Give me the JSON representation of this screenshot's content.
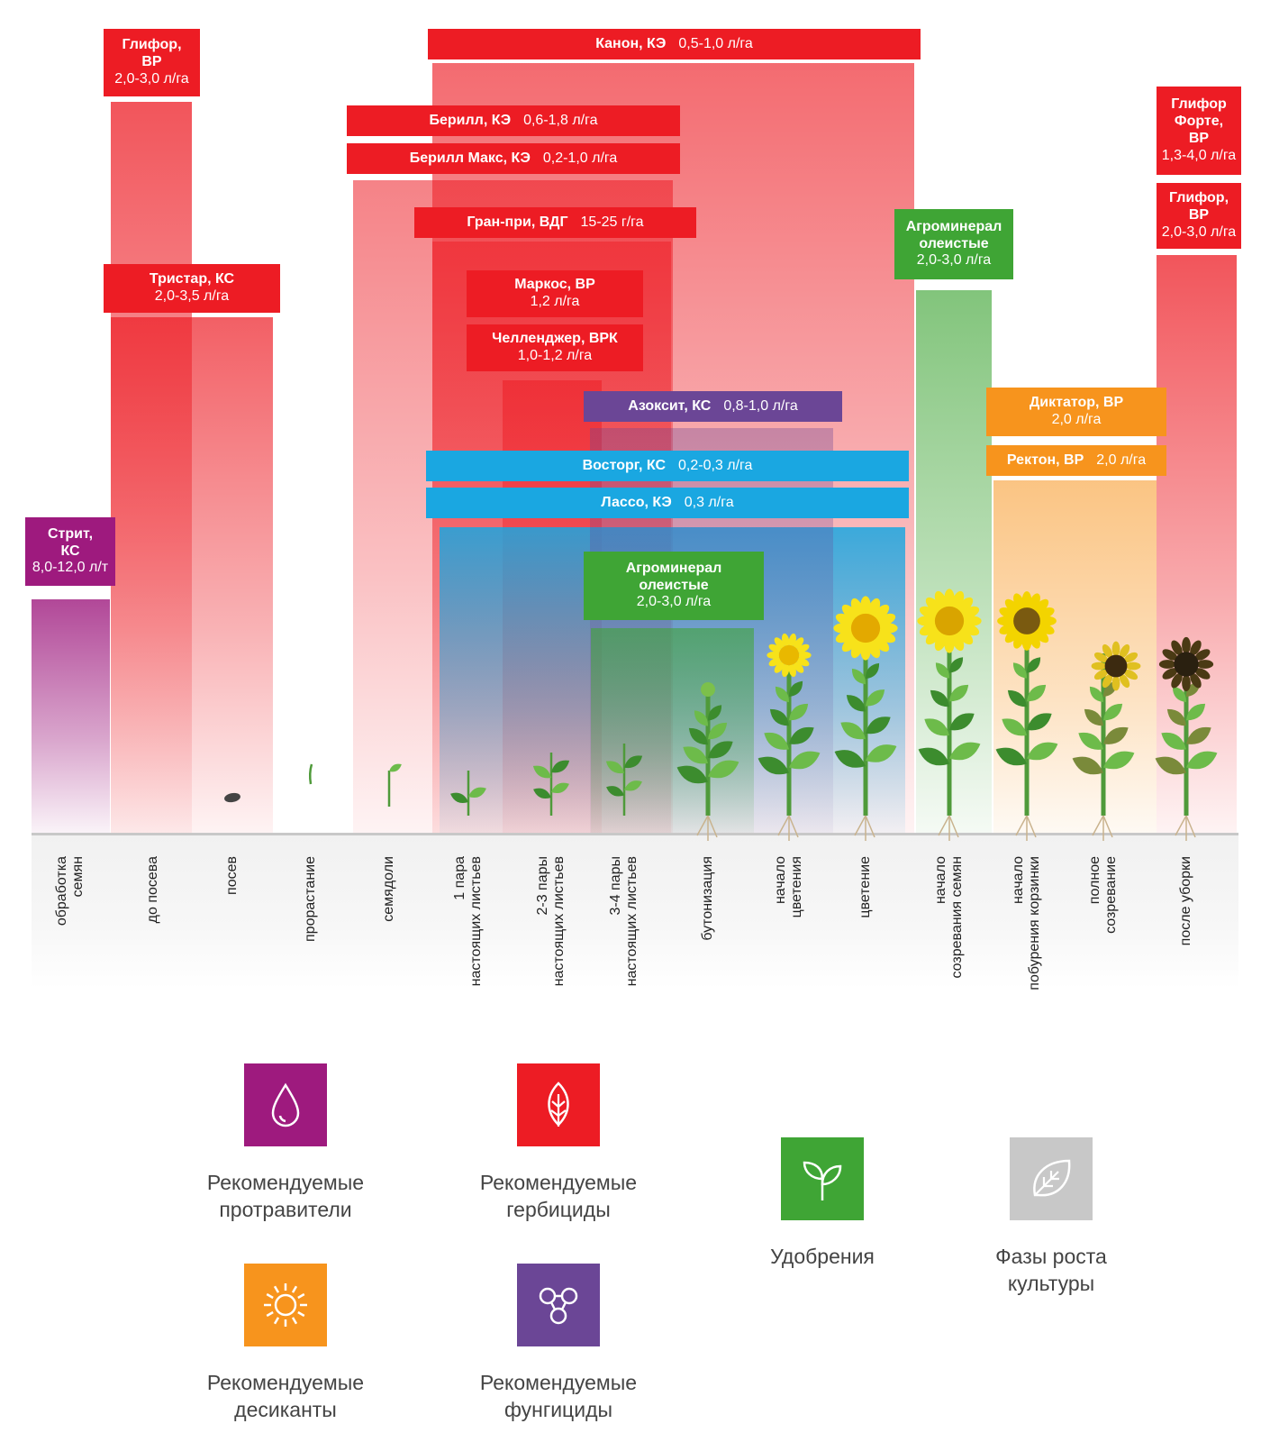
{
  "colors": {
    "herbicide": "#ed1c24",
    "fungicide": "#6b4696",
    "seed_treatment": "#9e1a7e",
    "fertilizer": "#3fa535",
    "desiccant": "#f7941d",
    "insecticide": "#1aa7e1",
    "growth_stage": "#c8c8c8"
  },
  "stages": [
    {
      "id": "s1",
      "lines": [
        "обработка",
        "семян"
      ]
    },
    {
      "id": "s2",
      "lines": [
        "до посева"
      ]
    },
    {
      "id": "s3",
      "lines": [
        "посев"
      ]
    },
    {
      "id": "s4",
      "lines": [
        "прорастание"
      ]
    },
    {
      "id": "s5",
      "lines": [
        "семядоли"
      ]
    },
    {
      "id": "s6",
      "lines": [
        "1 пара",
        "настоящих листьев"
      ]
    },
    {
      "id": "s7",
      "lines": [
        "2-3 пары",
        "настоящих листьев"
      ]
    },
    {
      "id": "s8",
      "lines": [
        "3-4 пары",
        "настоящих листьев"
      ]
    },
    {
      "id": "s9",
      "lines": [
        "бутонизация"
      ]
    },
    {
      "id": "s10",
      "lines": [
        "начало",
        "цветения"
      ]
    },
    {
      "id": "s11",
      "lines": [
        "цветение"
      ]
    },
    {
      "id": "s12",
      "lines": [
        "начало",
        "созревания семян"
      ]
    },
    {
      "id": "s13",
      "lines": [
        "начало",
        "побурения корзинки"
      ]
    },
    {
      "id": "s14",
      "lines": [
        "полное",
        "созревание"
      ]
    },
    {
      "id": "s15",
      "lines": [
        "после уборки"
      ]
    }
  ],
  "products": [
    {
      "id": "strit",
      "kind": "seed_treatment",
      "lines": [
        {
          "name": "Стрит,"
        },
        {
          "name": "КС"
        },
        {
          "dose": "8,0-12,0 л/т"
        }
      ]
    },
    {
      "id": "glifor1",
      "kind": "herbicide",
      "lines": [
        {
          "name": "Глифор,"
        },
        {
          "name": "ВР"
        },
        {
          "dose": "2,0-3,0 л/га"
        }
      ]
    },
    {
      "id": "tristar",
      "kind": "herbicide",
      "lines": [
        {
          "name": "Тристар, КС"
        },
        {
          "dose": "2,0-3,5 л/га"
        }
      ]
    },
    {
      "id": "kanon",
      "kind": "herbicide",
      "lines": [
        {
          "name": "Канон, КЭ",
          "dose": "0,5-1,0 л/га"
        }
      ]
    },
    {
      "id": "berill",
      "kind": "herbicide",
      "lines": [
        {
          "name": "Берилл, КЭ",
          "dose": "0,6-1,8 л/га"
        }
      ]
    },
    {
      "id": "berillmax",
      "kind": "herbicide",
      "lines": [
        {
          "name": "Берилл Макс, КЭ",
          "dose": "0,2-1,0 л/га"
        }
      ]
    },
    {
      "id": "granpri",
      "kind": "herbicide",
      "lines": [
        {
          "name": "Гран-при, ВДГ",
          "dose": "15-25 г/га"
        }
      ]
    },
    {
      "id": "markos",
      "kind": "herbicide",
      "lines": [
        {
          "name": "Маркос, ВР"
        },
        {
          "dose": "1,2 л/га"
        }
      ]
    },
    {
      "id": "chellendzher",
      "kind": "herbicide",
      "lines": [
        {
          "name": "Челленджер, ВРК"
        },
        {
          "dose": "1,0-1,2 л/га"
        }
      ]
    },
    {
      "id": "azoksit",
      "kind": "fungicide",
      "lines": [
        {
          "name": "Азоксит, КС",
          "dose": "0,8-1,0 л/га"
        }
      ]
    },
    {
      "id": "vostorg",
      "kind": "insecticide",
      "lines": [
        {
          "name": "Восторг, КС",
          "dose": "0,2-0,3 л/га"
        }
      ]
    },
    {
      "id": "lasso",
      "kind": "insecticide",
      "lines": [
        {
          "name": "Лассо, КЭ",
          "dose": "0,3 л/га"
        }
      ]
    },
    {
      "id": "agromineral1",
      "kind": "fertilizer",
      "lines": [
        {
          "name": "Агроминерал"
        },
        {
          "name": "олеистые"
        },
        {
          "dose": "2,0-3,0 л/га"
        }
      ]
    },
    {
      "id": "agromineral2",
      "kind": "fertilizer",
      "lines": [
        {
          "name": "Агроминерал"
        },
        {
          "name": "олеистые"
        },
        {
          "dose": "2,0-3,0 л/га"
        }
      ]
    },
    {
      "id": "diktator",
      "kind": "desiccant",
      "lines": [
        {
          "name": "Диктатор, ВР"
        },
        {
          "dose": "2,0 л/га"
        }
      ]
    },
    {
      "id": "rekton",
      "kind": "desiccant",
      "lines": [
        {
          "name": "Ректон, ВР",
          "dose": "2,0 л/га"
        }
      ]
    },
    {
      "id": "gliforforte",
      "kind": "herbicide",
      "lines": [
        {
          "name": "Глифор"
        },
        {
          "name": "Форте,"
        },
        {
          "name": "ВР"
        },
        {
          "dose": "1,3-4,0 л/га"
        }
      ]
    },
    {
      "id": "glifor2",
      "kind": "herbicide",
      "lines": [
        {
          "name": "Глифор,"
        },
        {
          "name": "ВР"
        },
        {
          "dose": "2,0-3,0 л/га"
        }
      ]
    }
  ],
  "legend": [
    {
      "id": "seed_treatment",
      "icon": "drop-icon",
      "lines": [
        "Рекомендуемые",
        "протравители"
      ]
    },
    {
      "id": "herbicide",
      "icon": "leaf-icon",
      "lines": [
        "Рекомендуемые",
        "гербициды"
      ]
    },
    {
      "id": "fertilizer",
      "icon": "sprout-icon",
      "lines": [
        "Удобрения"
      ]
    },
    {
      "id": "growth_stage",
      "icon": "leaf-outline-icon",
      "lines": [
        "Фазы роста",
        "культуры"
      ]
    },
    {
      "id": "desiccant",
      "icon": "sun-icon",
      "lines": [
        "Рекомендуемые",
        "десиканты"
      ]
    },
    {
      "id": "fungicide",
      "icon": "molecule-icon",
      "lines": [
        "Рекомендуемые",
        "фунгициды"
      ]
    }
  ]
}
